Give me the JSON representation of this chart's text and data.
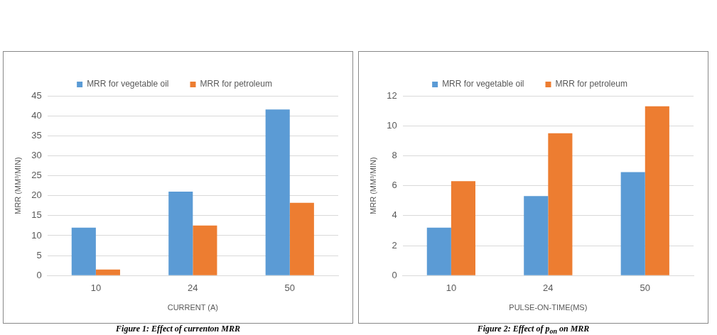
{
  "chart_data": [
    {
      "type": "bar",
      "categories": [
        "10",
        "24",
        "50"
      ],
      "xlabel": "CURRENT (A)",
      "ylabel": "MRR (MM³/MIN)",
      "series": [
        {
          "name": "MRR for vegetable oil",
          "color": "#5b9bd5",
          "values": [
            12,
            21,
            41.6
          ]
        },
        {
          "name": "MRR for petroleum",
          "color": "#ed7d31",
          "values": [
            1.5,
            12.5,
            18.2
          ]
        }
      ],
      "ylim": [
        0,
        45
      ],
      "yticks": [
        0,
        5,
        10,
        15,
        20,
        25,
        30,
        35,
        40,
        45
      ],
      "grid": "y",
      "legend": "top",
      "annotations": [
        "Figure 1: Effect of currenton MRR"
      ]
    },
    {
      "type": "bar",
      "categories": [
        "10",
        "24",
        "50"
      ],
      "xlabel": "PULSE-ON-TIME(MS)",
      "ylabel": "MRR (MM³/MIN)",
      "series": [
        {
          "name": "MRR for vegetable oil",
          "color": "#5b9bd5",
          "values": [
            3.2,
            5.3,
            6.9
          ]
        },
        {
          "name": "MRR for petroleum",
          "color": "#ed7d31",
          "values": [
            6.3,
            9.5,
            11.3
          ]
        }
      ],
      "ylim": [
        0,
        12
      ],
      "yticks": [
        0,
        2,
        4,
        6,
        8,
        10,
        12
      ],
      "grid": "y",
      "legend": "top",
      "annotations": [
        "Figure 2: Effect of p$_{on}$ on MRR"
      ]
    }
  ]
}
